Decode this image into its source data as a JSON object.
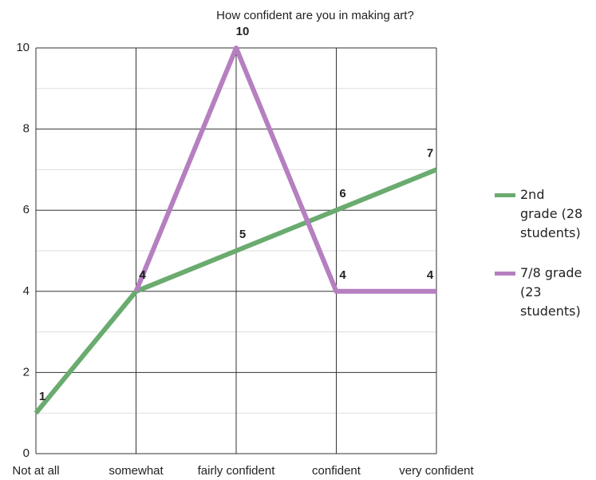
{
  "chart_data": {
    "type": "line",
    "title": "How confident are you in making art?",
    "categories": [
      "Not at all",
      "somewhat",
      "fairly confident",
      "confident",
      "very confident"
    ],
    "series": [
      {
        "name": "2nd grade (28 students)",
        "color": "#6aab6f",
        "values": [
          1,
          4,
          5,
          6,
          7
        ]
      },
      {
        "name": "7/8 grade (23 students)",
        "color": "#b57fc0",
        "values": [
          null,
          4,
          10,
          4,
          4
        ]
      }
    ],
    "ylim": [
      0,
      10
    ],
    "yticks": [
      0,
      2,
      4,
      6,
      8,
      10
    ],
    "grid": true,
    "legend": "right"
  }
}
